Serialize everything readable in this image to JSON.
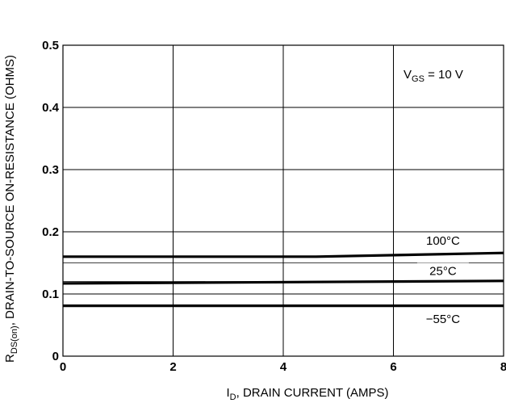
{
  "chart_data": {
    "type": "line",
    "x_label": {
      "prefix": "I",
      "sub": "D",
      "rest": ", DRAIN CURRENT (AMPS)"
    },
    "y_label": {
      "prefix": "R",
      "sub": "DS(on)",
      "rest": ", DRAIN-TO-SOURCE ON-RESISTANCE (OHMS)"
    },
    "xlim": [
      0,
      8
    ],
    "ylim": [
      0,
      0.5
    ],
    "x_ticks": [
      {
        "value": 0,
        "label": "0"
      },
      {
        "value": 2,
        "label": "2"
      },
      {
        "value": 4,
        "label": "4"
      },
      {
        "value": 6,
        "label": "6"
      },
      {
        "value": 8,
        "label": "8"
      }
    ],
    "y_ticks": [
      {
        "value": 0,
        "label": "0"
      },
      {
        "value": 0.1,
        "label": "0.1"
      },
      {
        "value": 0.2,
        "label": "0.2"
      },
      {
        "value": 0.3,
        "label": "0.3"
      },
      {
        "value": 0.4,
        "label": "0.4"
      },
      {
        "value": 0.5,
        "label": "0.5"
      }
    ],
    "x_grid": [
      0,
      2,
      4,
      6,
      8
    ],
    "y_grid": [
      0.1,
      0.2,
      0.3,
      0.4,
      0.5
    ],
    "y_minor_grid": [
      0.12,
      0.15
    ],
    "grid": true,
    "condition": {
      "prefix": "V",
      "sub": "GS",
      "rest": " = 10 V"
    },
    "series": [
      {
        "name": "100°C",
        "x": [
          0,
          4.6,
          8
        ],
        "y": [
          0.16,
          0.16,
          0.166
        ]
      },
      {
        "name": "25°C",
        "x": [
          0,
          8
        ],
        "y": [
          0.117,
          0.121
        ]
      },
      {
        "name": "−55°C",
        "x": [
          0,
          8
        ],
        "y": [
          0.081,
          0.081
        ]
      }
    ],
    "series_label_anchor": [
      {
        "x": 6.9,
        "y": 0.186
      },
      {
        "x": 6.9,
        "y": 0.137
      },
      {
        "x": 6.9,
        "y": 0.06
      }
    ],
    "colors": {
      "line": "#000000",
      "grid": "#000000",
      "background": "#ffffff"
    }
  }
}
